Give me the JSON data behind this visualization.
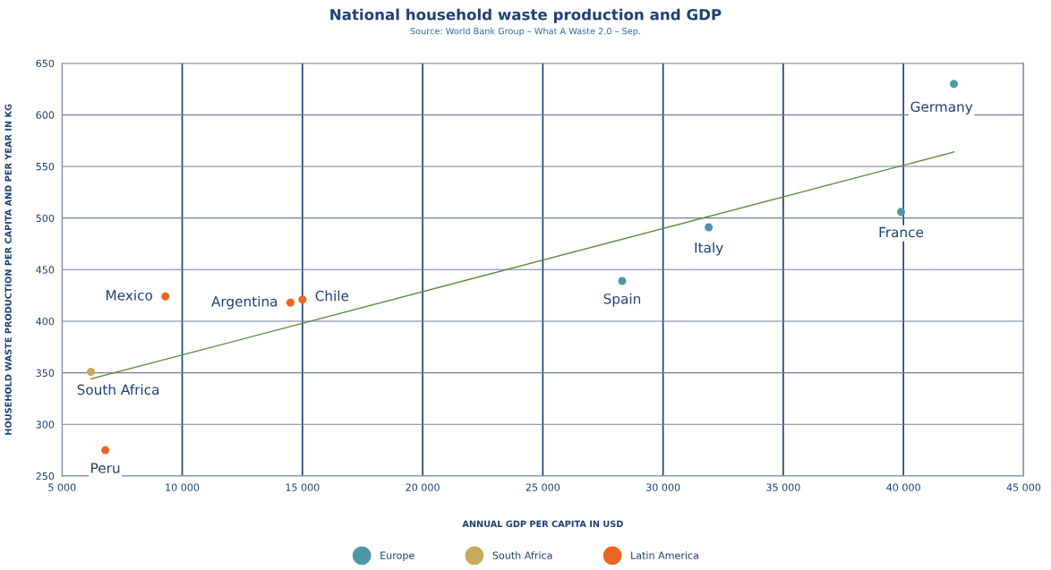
{
  "chart_data": {
    "type": "scatter",
    "title": "National household waste production and GDP",
    "subtitle": "Source: World Bank Group – What A Waste 2.0 – Sep.",
    "xlabel": "ANNUAL GDP PER CAPITA IN USD",
    "ylabel": "HOUSEHOLD WASTE PRODUCTION PER CAPITA AND PER YEAR IN KG",
    "xlim": [
      5000,
      45000
    ],
    "xticks": [
      {
        "value": 5000,
        "label": "5 000"
      },
      {
        "value": 10000,
        "label": "10 000"
      },
      {
        "value": 15000,
        "label": "15 000"
      },
      {
        "value": 20000,
        "label": "20 000"
      },
      {
        "value": 25000,
        "label": "25 000"
      },
      {
        "value": 30000,
        "label": "30 000"
      },
      {
        "value": 35000,
        "label": "35 000"
      },
      {
        "value": 40000,
        "label": "40 000"
      },
      {
        "value": 45000,
        "label": "45 000"
      }
    ],
    "ylim": [
      250,
      650
    ],
    "yticks": [
      250,
      300,
      350,
      400,
      450,
      500,
      550,
      600,
      650
    ],
    "grid": true,
    "legend": "bottom",
    "marker": "circle",
    "series": [
      {
        "name": "Europe",
        "color": "#4f97a8",
        "x": [
          42100,
          39900,
          31900,
          28300
        ],
        "values": [
          630,
          506,
          491,
          439
        ]
      },
      {
        "name": "South Africa",
        "color": "#c8aa5c",
        "x": [
          6200
        ],
        "values": [
          351
        ]
      },
      {
        "name": "Latin America",
        "color": "#ee6424",
        "x": [
          9300,
          14500,
          15000,
          6800
        ],
        "values": [
          424,
          418,
          421,
          275
        ]
      },
      {
        "type": "line",
        "color": "#5a8a3c",
        "x": [
          6200,
          42100
        ],
        "values": [
          344,
          564
        ],
        "marker": "none"
      }
    ],
    "annotations": [
      {
        "text": "Germany",
        "x": 42100,
        "y": 630
      },
      {
        "text": "France",
        "x": 39900,
        "y": 506
      },
      {
        "text": "Italy",
        "x": 31900,
        "y": 491
      },
      {
        "text": "Spain",
        "x": 28300,
        "y": 439
      },
      {
        "text": "Mexico",
        "x": 9300,
        "y": 424
      },
      {
        "text": "Argentina",
        "x": 14500,
        "y": 418
      },
      {
        "text": "Chile",
        "x": 15000,
        "y": 421
      },
      {
        "text": "South Africa",
        "x": 6200,
        "y": 351
      },
      {
        "text": "Peru",
        "x": 6800,
        "y": 275
      }
    ]
  }
}
